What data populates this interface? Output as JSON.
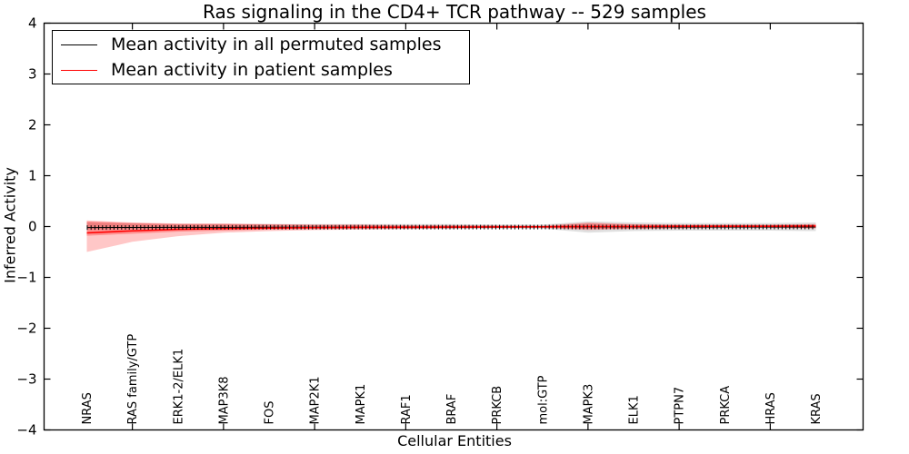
{
  "title": "Ras signaling in the CD4+ TCR pathway -- 529 samples",
  "colors": {
    "patient_line": "#ff0000",
    "permuted_line": "#000000",
    "patient_band": "#ff0000",
    "permuted_band": "#000000",
    "frame": "#000000",
    "background": "#ffffff"
  },
  "legend_entries": [
    {
      "label": "Mean activity in all permuted samples",
      "color": "#000000"
    },
    {
      "label": "Mean activity in patient samples",
      "color": "#ff0000"
    }
  ],
  "chart_data": {
    "type": "line",
    "title": "Ras signaling in the CD4+ TCR pathway -- 529 samples",
    "xlabel": "Cellular Entities",
    "ylabel": "Inferred Activity",
    "ylim": [
      -4,
      4
    ],
    "yticks": [
      -4,
      -3,
      -2,
      -1,
      0,
      1,
      2,
      3,
      4
    ],
    "grid": false,
    "legend_position": "upper left",
    "categories": [
      "NRAS",
      "RAS family/GTP",
      "ERK1-2/ELK1",
      "MAP3K8",
      "FOS",
      "MAP2K1",
      "MAPK1",
      "RAF1",
      "BRAF",
      "PRKCB",
      "mol:GTP",
      "MAPK3",
      "ELK1",
      "PTPN7",
      "PRKCA",
      "HRAS",
      "KRAS"
    ],
    "series": [
      {
        "name": "Mean activity in all permuted samples",
        "color": "#000000",
        "style": "solid-with-plus-markers",
        "values": [
          -0.02,
          -0.018,
          -0.016,
          -0.015,
          -0.014,
          -0.013,
          -0.012,
          -0.012,
          -0.011,
          -0.011,
          -0.01,
          -0.01,
          -0.01,
          -0.01,
          -0.01,
          -0.01,
          -0.01
        ]
      },
      {
        "name": "Mean activity in patient samples",
        "color": "#ff0000",
        "style": "solid",
        "values": [
          -0.125,
          -0.085,
          -0.055,
          -0.04,
          -0.03,
          -0.02,
          -0.015,
          -0.012,
          -0.01,
          -0.008,
          -0.005,
          0.0,
          0.0,
          0.005,
          0.005,
          0.005,
          0.01
        ]
      }
    ],
    "bands": [
      {
        "name": "permuted-samples-spread",
        "color": "#000000",
        "opacity": 0.12,
        "top": [
          0.08,
          0.06,
          0.05,
          0.05,
          0.05,
          0.05,
          0.05,
          0.05,
          0.05,
          0.04,
          0.04,
          0.1,
          0.08,
          0.07,
          0.07,
          0.07,
          0.08
        ],
        "bottom": [
          -0.06,
          -0.05,
          -0.05,
          -0.05,
          -0.05,
          -0.05,
          -0.05,
          -0.05,
          -0.05,
          -0.04,
          -0.04,
          -0.12,
          -0.09,
          -0.08,
          -0.08,
          -0.08,
          -0.09
        ]
      },
      {
        "name": "patient-samples-spread-outer",
        "color": "#ff0000",
        "opacity": 0.22,
        "top": [
          0.12,
          0.08,
          0.06,
          0.06,
          0.05,
          0.04,
          0.04,
          0.03,
          0.03,
          0.02,
          0.02,
          0.08,
          0.05,
          0.04,
          0.04,
          0.04,
          0.05
        ],
        "bottom": [
          -0.5,
          -0.3,
          -0.19,
          -0.12,
          -0.09,
          -0.07,
          -0.06,
          -0.05,
          -0.04,
          -0.03,
          -0.03,
          -0.07,
          -0.05,
          -0.04,
          -0.03,
          -0.03,
          -0.04
        ]
      },
      {
        "name": "patient-samples-spread-inner",
        "color": "#ff0000",
        "opacity": 0.28,
        "top": [
          0.1,
          0.07,
          0.05,
          0.05,
          0.04,
          0.03,
          0.03,
          0.02,
          0.02,
          0.02,
          0.01,
          0.06,
          0.04,
          0.03,
          0.03,
          0.03,
          0.04
        ],
        "bottom": [
          -0.18,
          -0.14,
          -0.1,
          -0.08,
          -0.06,
          -0.05,
          -0.04,
          -0.04,
          -0.03,
          -0.02,
          -0.02,
          -0.05,
          -0.04,
          -0.03,
          -0.02,
          -0.02,
          -0.03
        ]
      }
    ]
  }
}
